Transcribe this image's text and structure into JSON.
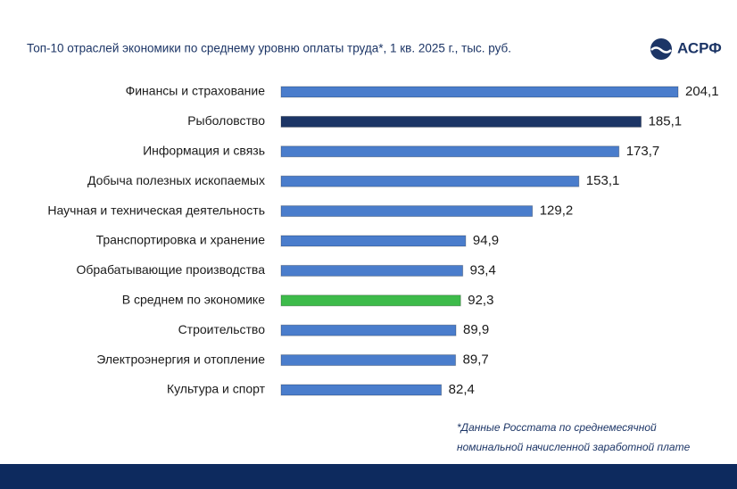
{
  "chart_data": {
    "type": "hbar",
    "title": "Топ-10 отраслей экономики по среднему уровню оплаты труда*, 1 кв. 2025 г., тыс. руб.",
    "logo": "АСРФ",
    "categories": [
      "Финансы и страхование",
      "Рыболовство",
      "Информация и связь",
      "Добыча полезных ископаемых",
      "Научная и техническая деятельность",
      "Транспортировка и хранение",
      "Обрабатывающие производства",
      "В среднем по экономике",
      "Строительство",
      "Электроэнергия и отопление",
      "Культура и спорт"
    ],
    "values": [
      204.1,
      185.1,
      173.7,
      153.1,
      129.2,
      94.9,
      93.4,
      92.3,
      89.9,
      89.7,
      82.4
    ],
    "value_labels": [
      "204,1",
      "185,1",
      "173,7",
      "153,1",
      "129,2",
      "94,9",
      "93,4",
      "92,3",
      "89,9",
      "89,7",
      "82,4"
    ],
    "colors": [
      "#4a7dcc",
      "#1c3566",
      "#4a7dcc",
      "#4a7dcc",
      "#4a7dcc",
      "#4a7dcc",
      "#4a7dcc",
      "#3dbb4a",
      "#4a7dcc",
      "#4a7dcc",
      "#4a7dcc"
    ],
    "footnote": [
      "*Данные Росстата по среднемесячной",
      "номинальной начисленной заработной плате"
    ]
  }
}
